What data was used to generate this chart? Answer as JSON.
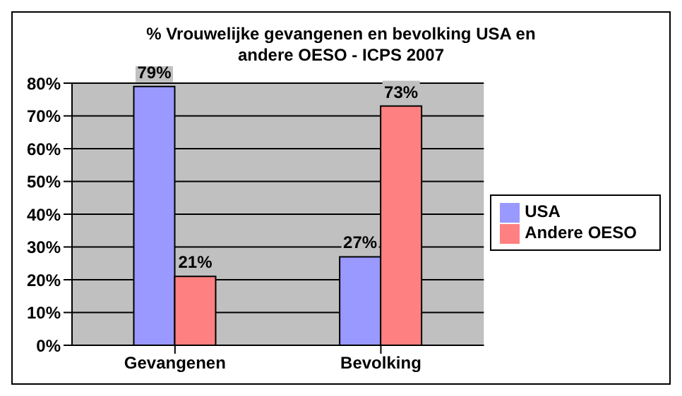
{
  "chart_data": {
    "type": "bar",
    "title": "% Vrouwelijke gevangenen en bevolking USA en andere OESO - ICPS 2007",
    "categories": [
      "Gevangenen",
      "Bevolking"
    ],
    "series": [
      {
        "name": "USA",
        "color": "#9999ff",
        "values": [
          79,
          27
        ],
        "value_labels": [
          "79%",
          "27%"
        ]
      },
      {
        "name": "Andere OESO",
        "color": "#ff8080",
        "values": [
          21,
          73
        ],
        "value_labels": [
          "21%",
          "73%"
        ]
      }
    ],
    "ylim": [
      0,
      80
    ],
    "yticks": [
      {
        "value": 0,
        "label": "0%"
      },
      {
        "value": 10,
        "label": "10%"
      },
      {
        "value": 20,
        "label": "20%"
      },
      {
        "value": 30,
        "label": "30%"
      },
      {
        "value": 40,
        "label": "40%"
      },
      {
        "value": 50,
        "label": "50%"
      },
      {
        "value": 60,
        "label": "60%"
      },
      {
        "value": 70,
        "label": "70%"
      },
      {
        "value": 80,
        "label": "80%"
      }
    ],
    "grid": "y",
    "legend": "right"
  }
}
